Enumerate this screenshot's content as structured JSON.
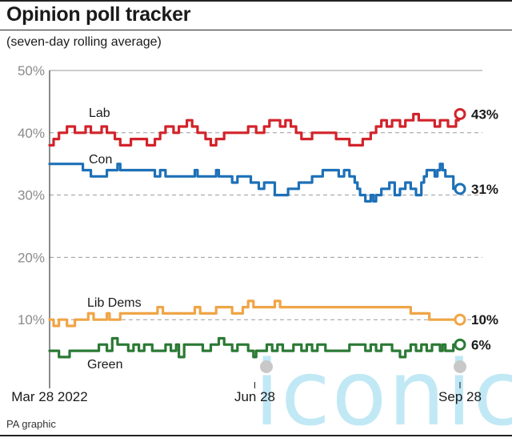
{
  "header": {
    "title": "Opinion poll tracker",
    "subtitle": "(seven-day rolling average)"
  },
  "footer": {
    "source": "PA graphic"
  },
  "watermark": {
    "text": "iconic"
  },
  "chart_data": {
    "type": "line",
    "title": "Opinion poll tracker",
    "subtitle": "(seven-day rolling average)",
    "xlabel": "",
    "ylabel": "",
    "ylim": [
      0,
      50
    ],
    "yticks": [
      10,
      20,
      30,
      40,
      50
    ],
    "ytick_labels": [
      "10%",
      "20%",
      "30%",
      "40%",
      "50%"
    ],
    "x_range": [
      "2022-03-28",
      "2022-09-28"
    ],
    "xticks": [
      "2022-03-28",
      "2022-06-28",
      "2022-09-28"
    ],
    "xtick_labels": [
      "Mar 28 2022",
      "Jun 28",
      "Sep 28"
    ],
    "grid": true,
    "series": [
      {
        "name": "Lab",
        "color": "#d2232a",
        "end_label": "43%",
        "values": [
          38,
          38,
          39,
          39,
          40,
          40,
          40,
          41,
          41,
          41,
          40,
          40,
          40,
          40,
          41,
          41,
          40,
          40,
          40,
          40,
          41,
          41,
          40,
          40,
          40,
          39,
          39,
          38,
          38,
          38,
          38,
          39,
          39,
          39,
          39,
          39,
          39,
          38,
          38,
          38,
          39,
          39,
          40,
          40,
          41,
          41,
          41,
          40,
          40,
          41,
          41,
          41,
          42,
          42,
          41,
          41,
          40,
          40,
          40,
          39,
          39,
          38,
          38,
          39,
          39,
          39,
          40,
          40,
          40,
          40,
          40,
          40,
          40,
          40,
          40,
          41,
          41,
          41,
          40,
          40,
          40,
          41,
          41,
          42,
          42,
          42,
          42,
          41,
          41,
          42,
          42,
          41,
          41,
          40,
          40,
          39,
          39,
          39,
          39,
          40,
          40,
          40,
          40,
          40,
          40,
          40,
          40,
          40,
          39,
          39,
          39,
          39,
          39,
          38,
          38,
          38,
          38,
          38,
          39,
          39,
          39,
          40,
          40,
          41,
          41,
          42,
          42,
          41,
          41,
          42,
          42,
          42,
          41,
          41,
          42,
          42,
          42,
          43,
          43,
          42,
          42,
          42,
          42,
          42,
          42,
          41,
          41,
          42,
          42,
          42,
          41,
          41,
          41,
          42,
          43
        ]
      },
      {
        "name": "Con",
        "color": "#1d70b7",
        "end_label": "31%",
        "values": [
          35,
          35,
          35,
          35,
          35,
          35,
          35,
          35,
          35,
          35,
          35,
          35,
          35,
          34,
          34,
          34,
          33,
          33,
          33,
          33,
          33,
          33,
          34,
          34,
          34,
          34,
          35,
          34,
          34,
          34,
          34,
          34,
          34,
          34,
          34,
          34,
          34,
          34,
          34,
          34,
          33,
          33,
          34,
          34,
          33,
          33,
          33,
          33,
          33,
          33,
          33,
          33,
          33,
          33,
          33,
          34,
          33,
          33,
          33,
          33,
          33,
          33,
          33,
          34,
          33,
          33,
          33,
          33,
          33,
          32,
          32,
          33,
          33,
          33,
          33,
          33,
          32,
          32,
          32,
          31,
          31,
          32,
          32,
          32,
          32,
          30,
          30,
          30,
          30,
          30,
          31,
          31,
          31,
          31,
          32,
          32,
          32,
          32,
          32,
          33,
          33,
          33,
          33,
          34,
          34,
          34,
          34,
          34,
          34,
          33,
          33,
          34,
          34,
          33,
          33,
          32,
          31,
          30,
          30,
          29,
          29,
          30,
          29,
          30,
          30,
          31,
          31,
          31,
          32,
          32,
          30,
          30,
          31,
          31,
          32,
          32,
          31,
          31,
          30,
          30,
          32,
          33,
          34,
          34,
          34,
          33,
          34,
          35,
          34,
          33,
          33,
          33,
          31,
          31,
          31
        ]
      },
      {
        "name": "Lib Dems",
        "color": "#f0a546",
        "end_label": "10%",
        "values": [
          10,
          10,
          9,
          9,
          10,
          10,
          10,
          9,
          9,
          9,
          10,
          10,
          10,
          10,
          10,
          11,
          11,
          10,
          10,
          10,
          10,
          10,
          11,
          10,
          10,
          10,
          10,
          11,
          11,
          11,
          11,
          11,
          11,
          11,
          11,
          11,
          11,
          11,
          11,
          11,
          11,
          12,
          12,
          11,
          11,
          11,
          11,
          11,
          11,
          11,
          11,
          11,
          11,
          11,
          11,
          12,
          12,
          11,
          11,
          11,
          11,
          11,
          11,
          12,
          12,
          12,
          12,
          12,
          12,
          11,
          11,
          11,
          11,
          12,
          12,
          13,
          13,
          12,
          12,
          12,
          12,
          12,
          12,
          12,
          12,
          13,
          13,
          12,
          12,
          12,
          12,
          12,
          12,
          12,
          12,
          12,
          12,
          12,
          12,
          12,
          12,
          12,
          12,
          12,
          12,
          12,
          12,
          12,
          12,
          12,
          12,
          12,
          12,
          12,
          12,
          12,
          12,
          12,
          12,
          12,
          12,
          12,
          12,
          12,
          12,
          12,
          12,
          12,
          12,
          12,
          12,
          12,
          12,
          12,
          12,
          12,
          11,
          11,
          11,
          11,
          11,
          11,
          11,
          10,
          10,
          10,
          10,
          10,
          10,
          10,
          10,
          10,
          10,
          10,
          10
        ]
      },
      {
        "name": "Green",
        "color": "#2b7a35",
        "end_label": "6%",
        "values": [
          5,
          5,
          5,
          5,
          4,
          4,
          4,
          4,
          5,
          5,
          5,
          5,
          5,
          5,
          5,
          5,
          5,
          5,
          5,
          6,
          6,
          6,
          5,
          5,
          7,
          7,
          6,
          6,
          6,
          6,
          5,
          5,
          6,
          6,
          5,
          5,
          6,
          6,
          6,
          5,
          5,
          5,
          5,
          5,
          6,
          6,
          5,
          5,
          6,
          4,
          4,
          6,
          6,
          6,
          6,
          6,
          6,
          6,
          5,
          5,
          5,
          6,
          6,
          6,
          7,
          7,
          6,
          6,
          6,
          5,
          5,
          6,
          6,
          6,
          6,
          5,
          5,
          4,
          5,
          5,
          5,
          5,
          6,
          6,
          5,
          5,
          6,
          6,
          5,
          5,
          5,
          5,
          6,
          6,
          6,
          5,
          5,
          6,
          6,
          5,
          5,
          6,
          6,
          6,
          5,
          5,
          5,
          5,
          5,
          5,
          5,
          5,
          5,
          6,
          6,
          6,
          6,
          6,
          6,
          5,
          5,
          6,
          6,
          5,
          5,
          6,
          6,
          6,
          6,
          5,
          5,
          5,
          4,
          4,
          5,
          5,
          6,
          6,
          5,
          5,
          6,
          6,
          5,
          5,
          6,
          6,
          6,
          5,
          6,
          5,
          5,
          5,
          6,
          6,
          6
        ]
      }
    ]
  }
}
